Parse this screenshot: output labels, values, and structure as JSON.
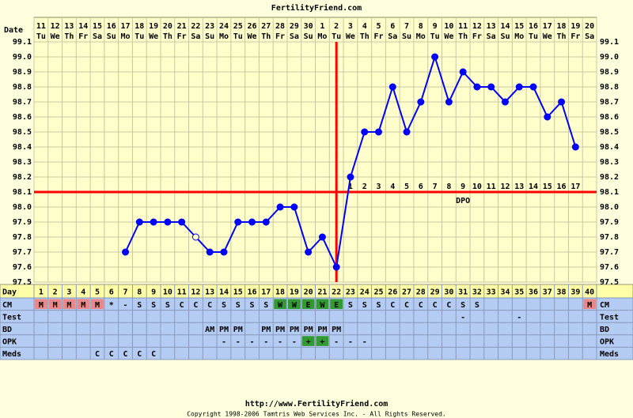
{
  "header": {
    "title": "FertilityFriend.com",
    "date_label": "Date",
    "day_label": "Day"
  },
  "chart_data": {
    "type": "line",
    "categories": [
      "11",
      "12",
      "13",
      "14",
      "15",
      "16",
      "17",
      "18",
      "19",
      "20",
      "21",
      "22",
      "23",
      "24",
      "25",
      "26",
      "27",
      "28",
      "29",
      "30",
      "1",
      "2",
      "3",
      "4",
      "5",
      "6",
      "7",
      "8",
      "9",
      "10",
      "11",
      "12",
      "13",
      "14",
      "15",
      "16",
      "17",
      "18",
      "19",
      "20"
    ],
    "weekdays": [
      "Tu",
      "We",
      "Th",
      "Fr",
      "Sa",
      "Su",
      "Mo",
      "Tu",
      "We",
      "Th",
      "Fr",
      "Sa",
      "Su",
      "Mo",
      "Tu",
      "We",
      "Th",
      "Fr",
      "Sa",
      "Su",
      "Mo",
      "Tu",
      "We",
      "Th",
      "Fr",
      "Sa",
      "Su",
      "Mo",
      "Tu",
      "We",
      "Th",
      "Fr",
      "Sa",
      "Su",
      "Mo",
      "Tu",
      "We",
      "Th",
      "Fr",
      "Sa"
    ],
    "cycle_days": [
      1,
      2,
      3,
      4,
      5,
      6,
      7,
      8,
      9,
      10,
      11,
      12,
      13,
      14,
      15,
      16,
      17,
      18,
      19,
      20,
      21,
      22,
      23,
      24,
      25,
      26,
      27,
      28,
      29,
      30,
      31,
      32,
      33,
      34,
      35,
      36,
      37,
      38,
      39,
      40
    ],
    "values": [
      null,
      null,
      null,
      null,
      null,
      null,
      97.7,
      97.9,
      97.9,
      97.9,
      97.9,
      97.8,
      97.7,
      97.7,
      97.9,
      97.9,
      97.9,
      98.0,
      98.0,
      97.7,
      97.8,
      97.6,
      98.2,
      98.5,
      98.5,
      98.8,
      98.5,
      98.7,
      99.0,
      98.7,
      98.9,
      98.8,
      98.8,
      98.7,
      98.8,
      98.8,
      98.6,
      98.7,
      98.4,
      null
    ],
    "hollow_days": [
      12
    ],
    "color": "#0000ff",
    "ylim": [
      97.5,
      99.1
    ],
    "yticks": [
      97.5,
      97.6,
      97.7,
      97.8,
      97.9,
      {
        "value": 98,
        "label": "98.0"
      },
      98.1,
      98.2,
      98.3,
      98.4,
      98.5,
      98.6,
      98.7,
      98.8,
      98.9,
      {
        "value": 99,
        "label": "99.0"
      },
      99.1
    ],
    "grid": true,
    "coverline": 98.1,
    "ovulation_day": 22,
    "marker_color": "#ff0000",
    "dpo": [
      null,
      null,
      null,
      null,
      null,
      null,
      null,
      null,
      null,
      null,
      null,
      null,
      null,
      null,
      null,
      null,
      null,
      null,
      null,
      null,
      null,
      null,
      1,
      2,
      3,
      4,
      5,
      6,
      7,
      8,
      9,
      10,
      11,
      12,
      13,
      14,
      15,
      16,
      17,
      null
    ],
    "dpo_label": "DPO",
    "cell_colors": {
      "M": "#e88888",
      "W": "#339933",
      "E": "#339933",
      "+": "#339933"
    },
    "rows": [
      {
        "label": "CM",
        "values": [
          "M",
          "M",
          "M",
          "M",
          "M",
          "*",
          "-",
          "S",
          "S",
          "S",
          "C",
          "C",
          "C",
          "S",
          "S",
          "S",
          "S",
          "W",
          "W",
          "E",
          "W",
          "E",
          "S",
          "S",
          "S",
          "C",
          "C",
          "C",
          "C",
          "C",
          "S",
          "S",
          null,
          null,
          null,
          null,
          null,
          null,
          null,
          "M"
        ]
      },
      {
        "label": "Test",
        "values": [
          null,
          null,
          null,
          null,
          null,
          null,
          null,
          null,
          null,
          null,
          null,
          null,
          null,
          null,
          null,
          null,
          null,
          null,
          null,
          null,
          null,
          null,
          null,
          null,
          null,
          null,
          null,
          null,
          null,
          null,
          "-",
          null,
          null,
          null,
          "-",
          null,
          null,
          null,
          null,
          null
        ]
      },
      {
        "label": "BD",
        "values": [
          null,
          null,
          null,
          null,
          null,
          null,
          null,
          null,
          null,
          null,
          null,
          null,
          "AM",
          "PM",
          "PM",
          null,
          "PM",
          "PM",
          "PM",
          "PM",
          "PM",
          "PM",
          null,
          null,
          null,
          null,
          null,
          null,
          null,
          null,
          null,
          null,
          null,
          null,
          null,
          null,
          null,
          null,
          null,
          null
        ]
      },
      {
        "label": "OPK",
        "values": [
          null,
          null,
          null,
          null,
          null,
          null,
          null,
          null,
          null,
          null,
          null,
          null,
          null,
          "-",
          "-",
          "-",
          "-",
          "-",
          "-",
          "+",
          "+",
          "-",
          "-",
          "-",
          null,
          null,
          null,
          null,
          null,
          null,
          null,
          null,
          null,
          null,
          null,
          null,
          null,
          null,
          null,
          null
        ]
      },
      {
        "label": "Meds",
        "values": [
          null,
          null,
          null,
          null,
          "C",
          "C",
          "C",
          "C",
          "C",
          null,
          null,
          null,
          null,
          null,
          null,
          null,
          null,
          null,
          null,
          null,
          null,
          null,
          null,
          null,
          null,
          null,
          null,
          null,
          null,
          null,
          null,
          null,
          null,
          null,
          null,
          null,
          null,
          null,
          null,
          null
        ]
      }
    ]
  },
  "footer": {
    "url": "http://www.FertilityFriend.com",
    "copyright": "Copyright 1998-2006 Tamtris Web Services Inc. - All Rights Reserved."
  }
}
